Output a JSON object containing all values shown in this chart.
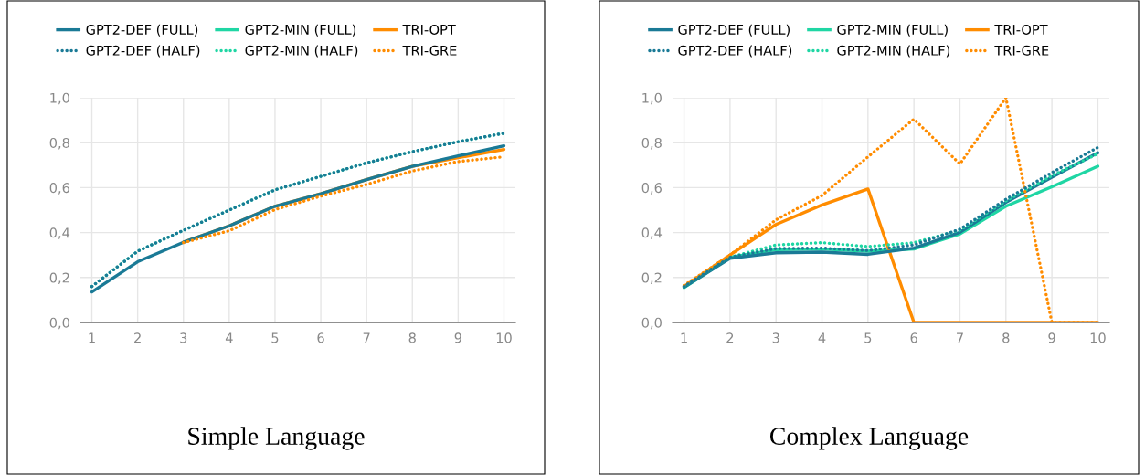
{
  "chart_data": [
    {
      "type": "line",
      "title": "Simple Language",
      "x": [
        1,
        2,
        3,
        4,
        5,
        6,
        7,
        8,
        9,
        10
      ],
      "xlim": [
        0.75,
        10.25
      ],
      "xticks": [
        1,
        2,
        3,
        4,
        5,
        6,
        7,
        8,
        9,
        10
      ],
      "ylim": [
        0,
        1
      ],
      "yticks": [
        {
          "value": 0,
          "label": "0,0"
        },
        {
          "value": 0.2,
          "label": "0,2"
        },
        {
          "value": 0.4,
          "label": "0,4"
        },
        {
          "value": 0.6,
          "label": "0,6"
        },
        {
          "value": 0.8,
          "label": "0,8"
        },
        {
          "value": 1,
          "label": "1,0"
        }
      ],
      "grid": true,
      "legend": "top",
      "marker": "none",
      "series": [
        {
          "name": "GPT2-MIN (FULL)",
          "color": "#1fd6a4",
          "line_style": "solid",
          "values": [
            null,
            null,
            null,
            null,
            null,
            null,
            null,
            null,
            null,
            null
          ]
        },
        {
          "name": "GPT2-MIN (HALF)",
          "color": "#1fd6a4",
          "line_style": "dotted",
          "values": [
            0.16,
            0.317,
            0.41,
            0.5,
            0.59,
            0.65,
            0.71,
            0.76,
            0.804,
            0.842
          ]
        },
        {
          "name": "TRI-OPT",
          "color": "#ff8c00",
          "line_style": "solid",
          "values": [
            null,
            null,
            0.357,
            0.43,
            0.517,
            0.573,
            0.636,
            0.695,
            0.733,
            0.77
          ]
        },
        {
          "name": "TRI-GRE",
          "color": "#ff8c00",
          "line_style": "dotted",
          "values": [
            null,
            null,
            0.355,
            0.408,
            0.502,
            0.562,
            0.614,
            0.674,
            0.716,
            0.737
          ]
        },
        {
          "name": "GPT2-DEF (FULL)",
          "color": "#1a7a96",
          "line_style": "solid",
          "values": [
            0.136,
            0.27,
            0.357,
            0.43,
            0.517,
            0.573,
            0.636,
            0.695,
            0.741,
            0.786
          ]
        },
        {
          "name": "GPT2-DEF (HALF)",
          "color": "#1a7a96",
          "line_style": "dotted",
          "values": [
            0.16,
            0.317,
            0.41,
            0.5,
            0.59,
            0.65,
            0.71,
            0.76,
            0.804,
            0.842
          ]
        }
      ]
    },
    {
      "type": "line",
      "title": "Complex Language",
      "x": [
        1,
        2,
        3,
        4,
        5,
        6,
        7,
        8,
        9,
        10
      ],
      "xlim": [
        0.75,
        10.25
      ],
      "xticks": [
        1,
        2,
        3,
        4,
        5,
        6,
        7,
        8,
        9,
        10
      ],
      "ylim": [
        0,
        1
      ],
      "yticks": [
        {
          "value": 0,
          "label": "0,0"
        },
        {
          "value": 0.2,
          "label": "0,2"
        },
        {
          "value": 0.4,
          "label": "0,4"
        },
        {
          "value": 0.6,
          "label": "0,6"
        },
        {
          "value": 0.8,
          "label": "0,8"
        },
        {
          "value": 1,
          "label": "1,0"
        }
      ],
      "grid": true,
      "legend": "top",
      "marker": "none",
      "series": [
        {
          "name": "GPT2-MIN (FULL)",
          "color": "#1fd6a4",
          "line_style": "solid",
          "values": [
            0.155,
            0.29,
            0.324,
            0.327,
            0.317,
            0.327,
            0.394,
            0.517,
            0.604,
            0.695
          ]
        },
        {
          "name": "GPT2-MIN (HALF)",
          "color": "#1fd6a4",
          "line_style": "dotted",
          "values": [
            0.16,
            0.29,
            0.345,
            0.355,
            0.338,
            0.355,
            0.411,
            0.541,
            0.653,
            0.751
          ]
        },
        {
          "name": "TRI-OPT",
          "color": "#ff8c00",
          "line_style": "solid",
          "values": [
            0.16,
            0.3,
            0.436,
            0.523,
            0.594,
            0,
            0,
            0,
            0,
            0
          ]
        },
        {
          "name": "TRI-GRE",
          "color": "#ff8c00",
          "line_style": "dotted",
          "values": [
            0.165,
            0.3,
            0.457,
            0.565,
            0.737,
            0.905,
            0.705,
            1.0,
            0,
            0
          ]
        },
        {
          "name": "GPT2-DEF (FULL)",
          "color": "#1a7a96",
          "line_style": "solid",
          "values": [
            0.157,
            0.285,
            0.31,
            0.313,
            0.303,
            0.331,
            0.401,
            0.534,
            0.646,
            0.755
          ]
        },
        {
          "name": "GPT2-DEF (HALF)",
          "color": "#1a7a96",
          "line_style": "dotted",
          "values": [
            0.16,
            0.29,
            0.329,
            0.331,
            0.32,
            0.345,
            0.415,
            0.548,
            0.667,
            0.779
          ]
        }
      ]
    }
  ]
}
